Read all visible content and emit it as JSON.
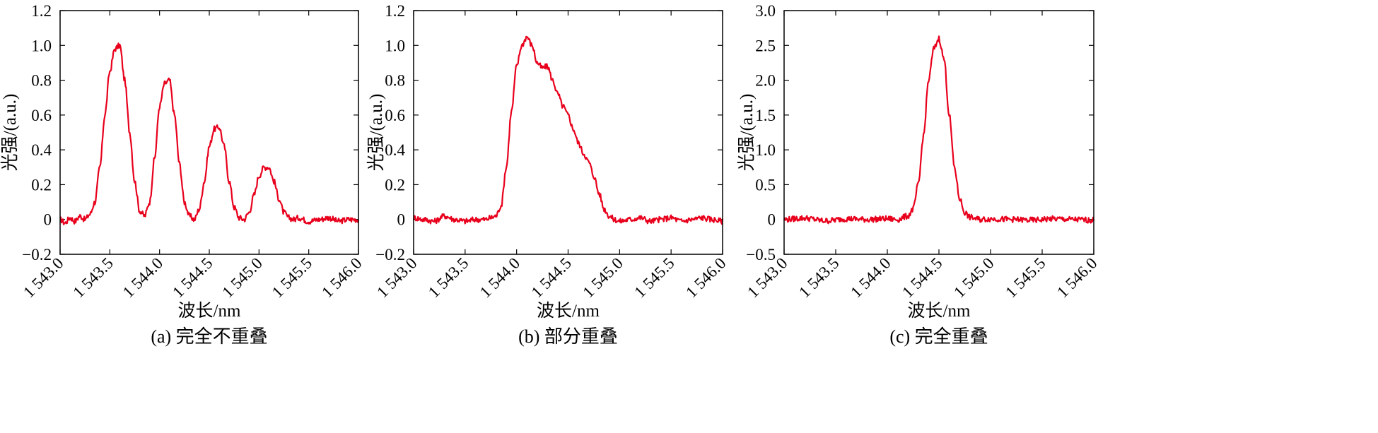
{
  "figure": {
    "xlabel": "波长/nm",
    "ylabel": "光强/(a.u.)",
    "line_color": "#e8001c"
  },
  "chart_data": [
    {
      "type": "line",
      "caption": "(a) 完全不重叠",
      "xlabel": "波长/nm",
      "ylabel": "光强/(a.u.)",
      "xlim": [
        1543.0,
        1546.0
      ],
      "ylim": [
        -0.2,
        1.2
      ],
      "xticks": [
        1543.0,
        1543.5,
        1544.0,
        1544.5,
        1545.0,
        1545.5,
        1546.0
      ],
      "xtick_labels": [
        "1 543.0",
        "1 543.5",
        "1 544.0",
        "1 544.5",
        "1 545.0",
        "1 545.5",
        "1 546.0"
      ],
      "yticks": [
        -0.2,
        0,
        0.2,
        0.4,
        0.6,
        0.8,
        1.0,
        1.2
      ],
      "ytick_labels": [
        "−0.2",
        "0",
        "0.2",
        "0.4",
        "0.6",
        "0.8",
        "1.0",
        "1.2"
      ],
      "series": [
        {
          "color": "#e8001c",
          "x": [
            1543.0,
            1543.05,
            1543.1,
            1543.15,
            1543.2,
            1543.25,
            1543.3,
            1543.35,
            1543.4,
            1543.45,
            1543.5,
            1543.55,
            1543.6,
            1543.65,
            1543.7,
            1543.75,
            1543.8,
            1543.85,
            1543.9,
            1543.95,
            1544.0,
            1544.05,
            1544.1,
            1544.15,
            1544.2,
            1544.25,
            1544.3,
            1544.35,
            1544.4,
            1544.45,
            1544.5,
            1544.55,
            1544.6,
            1544.65,
            1544.7,
            1544.75,
            1544.8,
            1544.85,
            1544.9,
            1544.95,
            1545.0,
            1545.05,
            1545.1,
            1545.15,
            1545.2,
            1545.25,
            1545.3,
            1545.35,
            1545.4,
            1545.5,
            1545.6,
            1545.7,
            1545.8,
            1545.9,
            1546.0
          ],
          "y": [
            0.0,
            -0.02,
            0.01,
            -0.01,
            0.02,
            0.0,
            0.03,
            0.1,
            0.3,
            0.6,
            0.85,
            0.98,
            1.0,
            0.8,
            0.5,
            0.22,
            0.05,
            0.02,
            0.1,
            0.35,
            0.65,
            0.78,
            0.8,
            0.6,
            0.32,
            0.1,
            0.02,
            0.0,
            0.06,
            0.22,
            0.42,
            0.52,
            0.53,
            0.42,
            0.22,
            0.07,
            0.01,
            0.0,
            0.04,
            0.14,
            0.25,
            0.3,
            0.3,
            0.22,
            0.12,
            0.04,
            0.01,
            0.0,
            0.01,
            -0.01,
            0.0,
            0.01,
            -0.01,
            0.0,
            0.0
          ]
        }
      ]
    },
    {
      "type": "line",
      "caption": "(b) 部分重叠",
      "xlabel": "波长/nm",
      "ylabel": "光强/(a.u.)",
      "xlim": [
        1543.0,
        1546.0
      ],
      "ylim": [
        -0.2,
        1.2
      ],
      "xticks": [
        1543.0,
        1543.5,
        1544.0,
        1544.5,
        1545.0,
        1545.5,
        1546.0
      ],
      "xtick_labels": [
        "1 543.0",
        "1 543.5",
        "1 544.0",
        "1 544.5",
        "1 545.0",
        "1 545.5",
        "1 546.0"
      ],
      "yticks": [
        -0.2,
        0,
        0.2,
        0.4,
        0.6,
        0.8,
        1.0,
        1.2
      ],
      "ytick_labels": [
        "−0.2",
        "0",
        "0.2",
        "0.4",
        "0.6",
        "0.8",
        "1.0",
        "1.2"
      ],
      "series": [
        {
          "color": "#e8001c",
          "x": [
            1543.0,
            1543.1,
            1543.2,
            1543.3,
            1543.4,
            1543.5,
            1543.6,
            1543.7,
            1543.75,
            1543.8,
            1543.85,
            1543.9,
            1543.95,
            1544.0,
            1544.05,
            1544.1,
            1544.15,
            1544.2,
            1544.25,
            1544.3,
            1544.35,
            1544.4,
            1544.45,
            1544.5,
            1544.55,
            1544.6,
            1544.65,
            1544.7,
            1544.75,
            1544.8,
            1544.85,
            1544.9,
            1544.95,
            1545.0,
            1545.1,
            1545.2,
            1545.3,
            1545.4,
            1545.5,
            1545.6,
            1545.7,
            1545.8,
            1545.9,
            1546.0
          ],
          "y": [
            0.01,
            0.0,
            -0.01,
            0.02,
            0.0,
            -0.01,
            0.0,
            0.0,
            0.01,
            0.02,
            0.08,
            0.3,
            0.62,
            0.88,
            1.0,
            1.05,
            1.0,
            0.9,
            0.87,
            0.88,
            0.8,
            0.72,
            0.65,
            0.6,
            0.52,
            0.44,
            0.38,
            0.33,
            0.25,
            0.15,
            0.06,
            0.02,
            0.0,
            -0.01,
            0.0,
            0.01,
            -0.01,
            0.0,
            0.01,
            -0.01,
            0.0,
            0.01,
            0.0,
            -0.01
          ]
        }
      ]
    },
    {
      "type": "line",
      "caption": "(c) 完全重叠",
      "xlabel": "波长/nm",
      "ylabel": "光强/(a.u.)",
      "xlim": [
        1543.0,
        1546.0
      ],
      "ylim": [
        -0.5,
        3.0
      ],
      "xticks": [
        1543.0,
        1543.5,
        1544.0,
        1544.5,
        1545.0,
        1545.5,
        1546.0
      ],
      "xtick_labels": [
        "1 543.0",
        "1 543.5",
        "1 544.0",
        "1 544.5",
        "1 545.0",
        "1 545.5",
        "1 546.0"
      ],
      "yticks": [
        -0.5,
        0,
        0.5,
        1.0,
        1.5,
        2.0,
        2.5,
        3.0
      ],
      "ytick_labels": [
        "−0.5",
        "0",
        "0.5",
        "1.0",
        "1.5",
        "2.0",
        "2.5",
        "3.0"
      ],
      "series": [
        {
          "color": "#e8001c",
          "x": [
            1543.0,
            1543.2,
            1543.4,
            1543.6,
            1543.8,
            1544.0,
            1544.1,
            1544.2,
            1544.25,
            1544.3,
            1544.35,
            1544.4,
            1544.45,
            1544.5,
            1544.55,
            1544.6,
            1544.65,
            1544.7,
            1544.75,
            1544.8,
            1544.9,
            1545.0,
            1545.2,
            1545.4,
            1545.6,
            1545.8,
            1546.0
          ],
          "y": [
            0.0,
            0.02,
            -0.02,
            0.01,
            0.0,
            0.01,
            0.0,
            0.05,
            0.15,
            0.5,
            1.2,
            2.0,
            2.45,
            2.6,
            2.3,
            1.5,
            0.75,
            0.3,
            0.1,
            0.03,
            0.0,
            0.01,
            0.0,
            -0.01,
            0.01,
            0.0,
            -0.01
          ]
        }
      ]
    }
  ]
}
